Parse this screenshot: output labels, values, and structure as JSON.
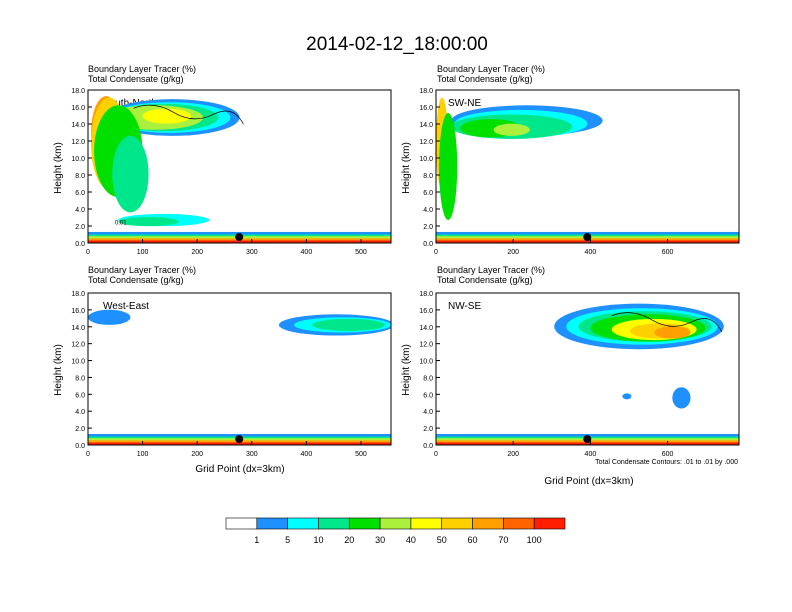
{
  "figure": {
    "title": "2014-02-12_18:00:00",
    "footnote": "Total Condensate Contours: .01 to .01 by .000"
  },
  "colors": {
    "levels": [
      "#ffffff",
      "#1e90ff",
      "#00ffff",
      "#00e68a",
      "#00e000",
      "#aaf03c",
      "#ffff00",
      "#ffd000",
      "#ffa000",
      "#ff6400",
      "#ff1e00"
    ],
    "contour": "#000000",
    "marker": "#000000"
  },
  "colorbar": {
    "labels": [
      "1",
      "5",
      "10",
      "20",
      "30",
      "40",
      "50",
      "60",
      "70",
      "100"
    ]
  },
  "chart_data": [
    {
      "type": "heatmap",
      "panel": "South-North",
      "title_line1": "Boundary Layer Tracer   (%)",
      "title_line2": "Total Condensate   (g/kg)",
      "ylabel": "Height (km)",
      "xlabel": "",
      "xlim": [
        0,
        555
      ],
      "ylim": [
        0,
        18
      ],
      "xticks": [
        0,
        100,
        200,
        300,
        400,
        500
      ],
      "yticks": [
        "0.0",
        "2.0",
        "4.0",
        "6.0",
        "8.0",
        "10.0",
        "12.0",
        "14.0",
        "16.0",
        "18.0"
      ],
      "marker_x": 277,
      "contour_labels": [
        "0.01"
      ]
    },
    {
      "type": "heatmap",
      "panel": "SW-NE",
      "title_line1": "Boundary Layer Tracer   (%)",
      "title_line2": "Total Condensate   (g/kg)",
      "ylabel": "Height (km)",
      "xlabel": "",
      "xlim": [
        0,
        785
      ],
      "ylim": [
        0,
        18
      ],
      "xticks": [
        0,
        200,
        400,
        600
      ],
      "yticks": [
        "0.0",
        "2.0",
        "4.0",
        "6.0",
        "8.0",
        "10.0",
        "12.0",
        "14.0",
        "16.0",
        "18.0"
      ],
      "marker_x": 392,
      "contour_labels": []
    },
    {
      "type": "heatmap",
      "panel": "West-East",
      "title_line1": "Boundary Layer Tracer   (%)",
      "title_line2": "Total Condensate   (g/kg)",
      "ylabel": "Height (km)",
      "xlabel": "Grid Point (dx=3km)",
      "xlim": [
        0,
        555
      ],
      "ylim": [
        0,
        18
      ],
      "xticks": [
        0,
        100,
        200,
        300,
        400,
        500
      ],
      "yticks": [
        "0.0",
        "2.0",
        "4.0",
        "6.0",
        "8.0",
        "10.0",
        "12.0",
        "14.0",
        "16.0",
        "18.0"
      ],
      "marker_x": 277,
      "contour_labels": []
    },
    {
      "type": "heatmap",
      "panel": "NW-SE",
      "title_line1": "Boundary Layer Tracer   (%)",
      "title_line2": "Total Condensate   (g/kg)",
      "ylabel": "Height (km)",
      "xlabel": "Grid Point (dx=3km)",
      "xlim": [
        0,
        785
      ],
      "ylim": [
        0,
        18
      ],
      "xticks": [
        0,
        200,
        400,
        600
      ],
      "yticks": [
        "0.0",
        "2.0",
        "4.0",
        "6.0",
        "8.0",
        "10.0",
        "12.0",
        "14.0",
        "16.0",
        "18.0"
      ],
      "marker_x": 392,
      "contour_labels": []
    }
  ]
}
